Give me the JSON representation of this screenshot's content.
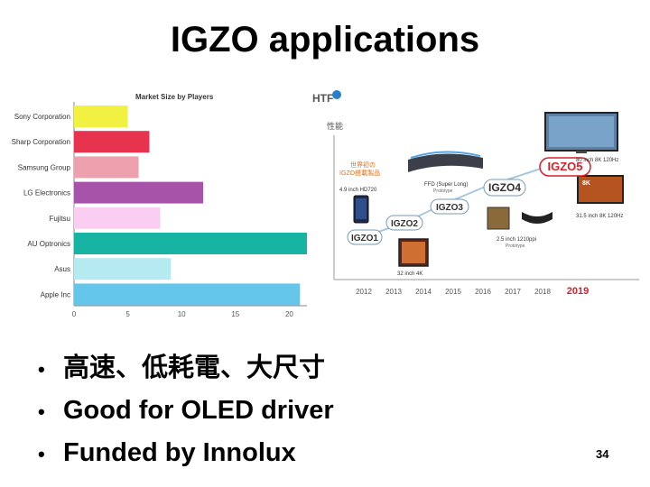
{
  "slide": {
    "title": "IGZO applications",
    "bullets": [
      "高速、低耗電、大尺寸",
      "Good for OLED driver",
      "Funded by Innolux"
    ],
    "page_number": "34"
  },
  "chart_data": [
    {
      "type": "bar",
      "orientation": "horizontal",
      "title": "Market Size by Players",
      "categories": [
        "Sony Corporation",
        "Sharp Corporation",
        "Samsung Group",
        "LG Electronics",
        "Fujitsu",
        "AU Optronics",
        "Asus",
        "Apple Inc"
      ],
      "values": [
        5,
        7,
        6,
        12,
        8,
        23,
        9,
        21
      ],
      "colors": [
        "#f2f041",
        "#e8334f",
        "#eda0ad",
        "#a753a9",
        "#f9cef2",
        "#17b3a3",
        "#b6eaf1",
        "#63c6ea"
      ],
      "xticks": [
        0,
        5,
        10,
        15,
        20,
        25
      ],
      "xlim": [
        0,
        25
      ],
      "grid": false
    }
  ],
  "timeline": {
    "logo": "HTF",
    "y_label": "性能",
    "years": [
      "2012",
      "2013",
      "2014",
      "2015",
      "2016",
      "2017",
      "2018",
      "2019"
    ],
    "highlight_year": "2019",
    "highlight_color": "#d81e2a",
    "nodes": [
      {
        "label": "IGZO1",
        "highlight": false
      },
      {
        "label": "IGZO2",
        "highlight": false
      },
      {
        "label": "IGZO3",
        "highlight": false
      },
      {
        "label": "IGZO4",
        "highlight": false
      },
      {
        "label": "IGZO5",
        "highlight": true
      }
    ],
    "notes": {
      "world_first_1": "世界初の",
      "world_first_2": "IGZO搭載製品",
      "phone": "4.9 inch HD720",
      "ffd": "FFD (Super Long)",
      "ffd_sub": "Prototype",
      "monitor": "32 inch 4K",
      "ppi": "2.5 inch 1210ppi",
      "ppi_sub": "Prototype",
      "tv_large": "80 inch 8K 120Hz",
      "tv_small": "31.5 inch 8K 120Hz",
      "badge_8k": "8K"
    }
  }
}
